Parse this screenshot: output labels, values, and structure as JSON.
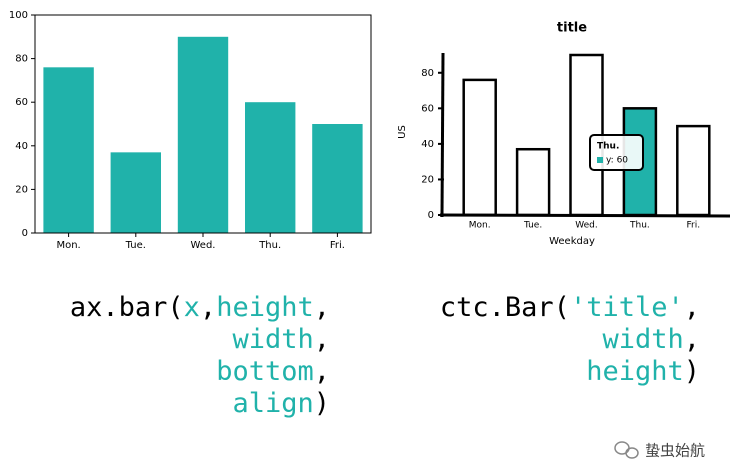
{
  "chart_data": [
    {
      "type": "bar",
      "categories": [
        "Mon.",
        "Tue.",
        "Wed.",
        "Thu.",
        "Fri."
      ],
      "values": [
        76,
        37,
        90,
        60,
        50
      ],
      "color": "#20b2aa",
      "ylim": [
        0,
        100
      ],
      "yticks": [
        0,
        20,
        40,
        60,
        80,
        100
      ]
    },
    {
      "type": "bar",
      "style": "xkcd",
      "title": "title",
      "x_label": "Weekday",
      "y_label": "US",
      "categories": [
        "Mon.",
        "Tue.",
        "Wed.",
        "Thu.",
        "Fri."
      ],
      "values": [
        76,
        37,
        90,
        60,
        50
      ],
      "color": "#ffffff",
      "highlight_color": "#20b2aa",
      "highlight_index": 3,
      "ylim": [
        0,
        90
      ],
      "yticks": [
        0,
        20,
        40,
        60,
        80
      ],
      "tooltip": {
        "title": "Thu.",
        "text": "y: 60"
      }
    }
  ],
  "code_left": [
    [
      {
        "text": "ax.bar(",
        "color": "#000000"
      },
      {
        "text": "x",
        "color": "#20b2aa"
      },
      {
        "text": ",",
        "color": "#000000"
      },
      {
        "text": "height",
        "color": "#20b2aa"
      },
      {
        "text": ",",
        "color": "#000000"
      }
    ],
    [
      {
        "text": "width",
        "color": "#20b2aa"
      },
      {
        "text": ",",
        "color": "#000000"
      }
    ],
    [
      {
        "text": "bottom",
        "color": "#20b2aa"
      },
      {
        "text": ",",
        "color": "#000000"
      }
    ],
    [
      {
        "text": "align",
        "color": "#20b2aa"
      },
      {
        "text": ")",
        "color": "#000000"
      }
    ]
  ],
  "code_right": [
    [
      {
        "text": "ctc.Bar(",
        "color": "#000000"
      },
      {
        "text": "'title'",
        "color": "#20b2aa"
      },
      {
        "text": ",",
        "color": "#000000"
      }
    ],
    [
      {
        "text": "width",
        "color": "#20b2aa"
      },
      {
        "text": ",",
        "color": "#000000"
      }
    ],
    [
      {
        "text": "height",
        "color": "#20b2aa"
      },
      {
        "text": ")",
        "color": "#000000"
      }
    ]
  ],
  "watermark": "蛰虫始航"
}
